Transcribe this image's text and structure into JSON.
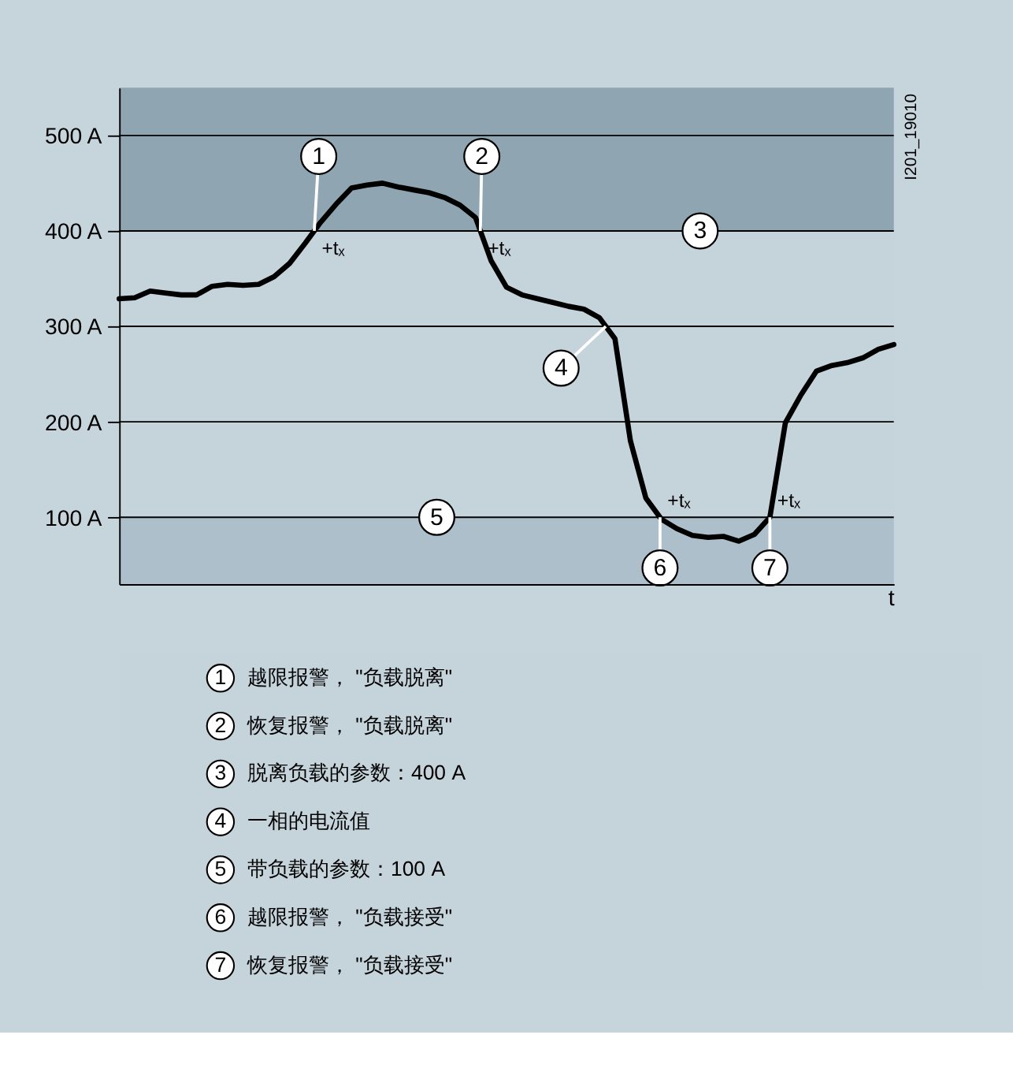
{
  "chart_data": {
    "type": "line",
    "xlabel": "t",
    "categories": [
      null,
      null,
      null,
      null,
      null,
      null,
      null,
      null,
      null,
      null,
      null,
      null,
      null,
      null,
      null,
      null,
      null,
      null,
      null,
      null,
      null,
      null,
      null,
      null,
      null,
      null,
      null,
      null,
      null,
      null,
      null,
      null,
      null,
      null,
      null,
      null,
      null,
      null,
      null,
      null,
      null,
      null,
      null,
      null,
      null,
      null,
      null,
      null,
      null,
      null,
      null
    ],
    "series": [
      {
        "color": "#000000",
        "values": [
          329,
          330,
          337,
          335,
          333,
          333,
          342,
          344,
          343,
          344,
          352,
          366,
          387,
          409,
          428,
          445,
          448,
          450,
          446,
          443,
          440,
          435,
          427,
          414,
          369,
          341,
          333,
          329,
          325,
          321,
          318,
          309,
          287,
          180,
          120,
          98,
          88,
          81,
          79,
          80,
          75,
          82,
          100,
          199,
          228,
          253,
          259,
          262,
          267,
          276,
          281
        ]
      }
    ],
    "ylim": [
      30,
      550
    ],
    "yticks": [
      {
        "value": 100,
        "label": "100 A"
      },
      {
        "value": 200,
        "label": "200 A"
      },
      {
        "value": 300,
        "label": "300 A"
      },
      {
        "value": 400,
        "label": "400 A"
      },
      {
        "value": 500,
        "label": "500 A"
      }
    ],
    "tick_labels": "y",
    "grid": "y",
    "legend": false,
    "line_style": "solid",
    "marker": "none",
    "bands": [
      {
        "axis": "y",
        "from": 400,
        "to": 550,
        "color": "#8fa6b2",
        "label": "3"
      },
      {
        "axis": "y",
        "from": 30,
        "to": 100,
        "color": "#adbfca",
        "label": "5"
      }
    ],
    "annotations": [
      {
        "text": "1",
        "y": 400
      },
      {
        "text": "2",
        "y": 400
      },
      {
        "text": "6",
        "y": 100
      },
      {
        "text": "7",
        "y": 100
      },
      {
        "text": "+tₓ",
        "y": 400
      },
      {
        "text": "+tₓ",
        "y": 400
      },
      {
        "text": "+tₓ",
        "y": 100
      },
      {
        "text": "+tₓ",
        "y": 100
      },
      "I201_19010",
      "4",
      "越限报警， \"负载脱离\"",
      "恢复报警， \"负载脱离\"",
      "脱离负载的参数：400 A",
      "一相的电流值",
      "带负载的参数：100 A",
      "越限报警， \"负载接受\"",
      "恢复报警， \"负载接受\""
    ]
  }
}
